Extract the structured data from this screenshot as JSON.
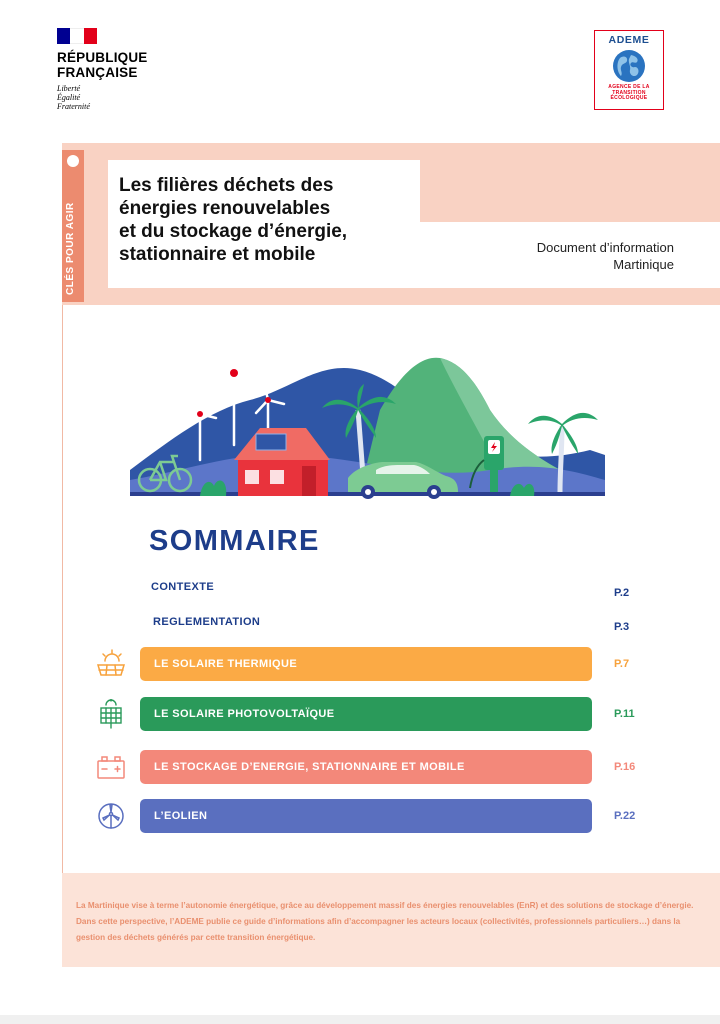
{
  "header": {
    "republic_name_line1": "RÉPUBLIQUE",
    "republic_name_line2": "FRANÇAISE",
    "motto": [
      "Liberté",
      "Égalité",
      "Fraternité"
    ],
    "ademe_name": "ADEME",
    "ademe_subtitle": [
      "AGENCE DE LA",
      "TRANSITION",
      "ÉCOLOGIQUE"
    ]
  },
  "cover": {
    "side_label": "CLÉS POUR AGIR",
    "title_lines": [
      "Les filières déchets des",
      "énergies renouvelables",
      "et du stockage d’énergie,",
      "stationnaire et mobile"
    ],
    "doc_type": "Document d’information",
    "region": "Martinique"
  },
  "sommaire": {
    "heading": "SOMMAIRE",
    "plain_items": [
      {
        "label": "CONTEXTE",
        "page": "P.2"
      },
      {
        "label": "REGLEMENTATION",
        "page": "P.3"
      }
    ],
    "sections": [
      {
        "label": "LE SOLAIRE THERMIQUE",
        "page": "P.7",
        "color": "#fbaa45",
        "page_color": "#f7a23c",
        "icon": "solar-thermal-icon"
      },
      {
        "label": "LE SOLAIRE PHOTOVOLTAÏQUE",
        "page": "P.11",
        "color": "#2a9a5a",
        "page_color": "#2a9a5a",
        "icon": "solar-panel-icon"
      },
      {
        "label": "LE STOCKAGE D’ENERGIE, STATIONNAIRE ET MOBILE",
        "page": "P.16",
        "color": "#f3887a",
        "page_color": "#f3887a",
        "icon": "battery-icon"
      },
      {
        "label": "L’EOLIEN",
        "page": "P.22",
        "color": "#5a6fbf",
        "page_color": "#5a6fbf",
        "icon": "wind-turbine-icon"
      }
    ]
  },
  "footer": {
    "text": "La Martinique vise à terme l’autonomie énergétique, grâce au développement massif des énergies renouvelables (EnR) et des solutions de stockage d’énergie. Dans cette perspective, l’ADEME publie ce guide d’informations afin d’accompagner les acteurs locaux (collectivités, professionnels particuliers…) dans la gestion des déchets générés par cette transition énergétique."
  },
  "colors": {
    "navy": "#1d3d8a",
    "band_pink": "#f9d2c3",
    "strip_orange": "#ec8b6f",
    "marianne_red": "#e2001a",
    "marianne_blue": "#000091"
  }
}
